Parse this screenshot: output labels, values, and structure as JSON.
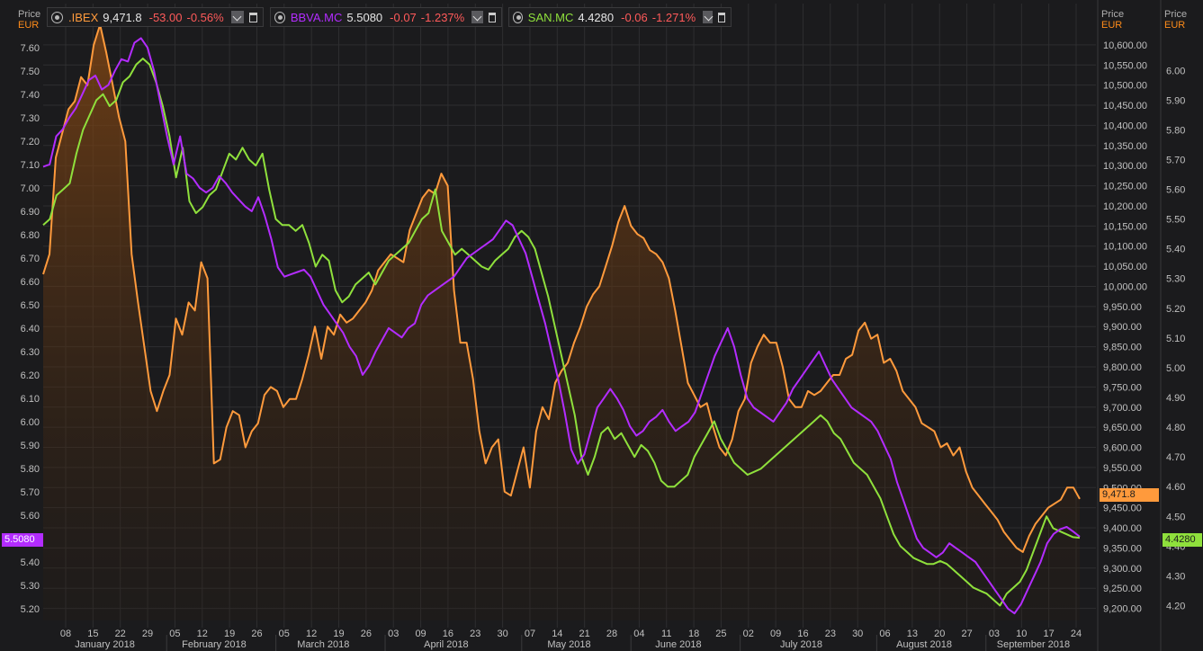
{
  "legend": [
    {
      "symbol": ".IBEX",
      "price": "9,471.8",
      "change": "-53.00",
      "pct": "-0.56%",
      "color": "#ff9a3c"
    },
    {
      "symbol": "BBVA.MC",
      "price": "5.5080",
      "change": "-0.07",
      "pct": "-1.237%",
      "color": "#b32cff"
    },
    {
      "symbol": "SAN.MC",
      "price": "4.4280",
      "change": "-0.06",
      "pct": "-1.271%",
      "color": "#8fe03c"
    }
  ],
  "axis_headers": {
    "price": "Price",
    "currency": "EUR"
  },
  "last_tags": {
    "bbva": {
      "text": "5.5080",
      "color": "#b32cff"
    },
    "ibex": {
      "text": "9,471.8",
      "color": "#ff9a3c"
    },
    "san": {
      "text": "4.4280",
      "color": "#8fe03c"
    }
  },
  "colors": {
    "ibex": "#ff9a3c",
    "bbva": "#b32cff",
    "san": "#8fe03c",
    "background": "#1b1b1d",
    "grid": "#2e2e30"
  },
  "chart_data": {
    "type": "line",
    "x_tick_labels": [
      "08",
      "15",
      "22",
      "29",
      "05",
      "12",
      "19",
      "26",
      "05",
      "12",
      "19",
      "26",
      "03",
      "09",
      "16",
      "23",
      "30",
      "07",
      "14",
      "21",
      "28",
      "04",
      "11",
      "18",
      "25",
      "02",
      "09",
      "16",
      "23",
      "30",
      "06",
      "13",
      "20",
      "27",
      "03",
      "10",
      "17",
      "24"
    ],
    "month_labels": [
      "January 2018",
      "February 2018",
      "March 2018",
      "April 2018",
      "May 2018",
      "June 2018",
      "July 2018",
      "August 2018",
      "September 2018"
    ],
    "axes": {
      "left": {
        "label": "Price",
        "unit": "EUR",
        "series": "BBVA.MC",
        "range": [
          5.15,
          7.68
        ],
        "ticks": [
          "7.60",
          "7.50",
          "7.40",
          "7.30",
          "7.20",
          "7.10",
          "7.00",
          "6.90",
          "6.80",
          "6.70",
          "6.60",
          "6.50",
          "6.40",
          "6.30",
          "6.20",
          "6.10",
          "6.00",
          "5.90",
          "5.80",
          "5.70",
          "5.60",
          "5.50",
          "5.40",
          "5.30",
          "5.20"
        ]
      },
      "right_inner": {
        "label": "Price",
        "unit": "EUR",
        "series": ".IBEX",
        "range": [
          9170,
          10640
        ],
        "ticks": [
          "10,600.00",
          "10,550.00",
          "10,500.00",
          "10,450.00",
          "10,400.00",
          "10,350.00",
          "10,300.00",
          "10,250.00",
          "10,200.00",
          "10,150.00",
          "10,100.00",
          "10,050.00",
          "10,000.00",
          "9,950.00",
          "9,900.00",
          "9,850.00",
          "9,800.00",
          "9,750.00",
          "9,700.00",
          "9,650.00",
          "9,600.00",
          "9,550.00",
          "9,500.00",
          "9,450.00",
          "9,400.00",
          "9,350.00",
          "9,300.00",
          "9,250.00",
          "9,200.00"
        ]
      },
      "right_outer": {
        "label": "Price",
        "unit": "EUR",
        "series": "SAN.MC",
        "range": [
          4.15,
          6.14
        ],
        "ticks": [
          "6.00",
          "5.90",
          "5.80",
          "5.70",
          "5.60",
          "5.50",
          "5.40",
          "5.30",
          "5.20",
          "5.10",
          "5.00",
          "4.90",
          "4.80",
          "4.70",
          "4.60",
          "4.50",
          "4.40",
          "4.30",
          "4.20"
        ]
      }
    },
    "grid": true,
    "series": [
      {
        "name": ".IBEX",
        "axis": "right_inner",
        "values": [
          10030,
          10080,
          10320,
          10380,
          10440,
          10460,
          10520,
          10500,
          10600,
          10650,
          10580,
          10500,
          10420,
          10360,
          10080,
          9960,
          9850,
          9740,
          9690,
          9740,
          9780,
          9920,
          9880,
          9960,
          9940,
          10060,
          10020,
          9560,
          9570,
          9650,
          9690,
          9680,
          9600,
          9640,
          9660,
          9730,
          9750,
          9740,
          9700,
          9720,
          9720,
          9770,
          9830,
          9900,
          9820,
          9900,
          9880,
          9930,
          9910,
          9920,
          9940,
          9960,
          9990,
          10040,
          10060,
          10080,
          10070,
          10060,
          10140,
          10180,
          10220,
          10240,
          10230,
          10280,
          10250,
          9990,
          9860,
          9860,
          9770,
          9640,
          9560,
          9600,
          9620,
          9490,
          9480,
          9540,
          9600,
          9500,
          9640,
          9700,
          9670,
          9760,
          9790,
          9810,
          9860,
          9900,
          9950,
          9980,
          10000,
          10050,
          10100,
          10160,
          10200,
          10150,
          10130,
          10120,
          10090,
          10080,
          10060,
          10020,
          9940,
          9850,
          9760,
          9730,
          9700,
          9710,
          9650,
          9600,
          9580,
          9620,
          9690,
          9720,
          9810,
          9850,
          9880,
          9860,
          9860,
          9800,
          9720,
          9700,
          9700,
          9740,
          9730,
          9740,
          9760,
          9780,
          9780,
          9820,
          9830,
          9890,
          9910,
          9870,
          9880,
          9810,
          9820,
          9790,
          9740,
          9720,
          9700,
          9660,
          9650,
          9640,
          9600,
          9610,
          9580,
          9600,
          9540,
          9500,
          9480,
          9460,
          9440,
          9420,
          9390,
          9370,
          9350,
          9340,
          9380,
          9410,
          9430,
          9450,
          9460,
          9470,
          9500,
          9500,
          9471.8
        ]
      },
      {
        "name": "BBVA.MC",
        "axis": "left",
        "values": [
          7.09,
          7.1,
          7.22,
          7.25,
          7.3,
          7.34,
          7.4,
          7.46,
          7.48,
          7.42,
          7.44,
          7.5,
          7.55,
          7.54,
          7.62,
          7.64,
          7.6,
          7.5,
          7.36,
          7.22,
          7.1,
          7.22,
          7.06,
          7.04,
          7.0,
          6.98,
          7.0,
          7.05,
          7.02,
          6.98,
          6.95,
          6.92,
          6.9,
          6.96,
          6.88,
          6.78,
          6.66,
          6.62,
          6.63,
          6.64,
          6.65,
          6.62,
          6.56,
          6.5,
          6.46,
          6.42,
          6.38,
          6.32,
          6.28,
          6.2,
          6.24,
          6.3,
          6.35,
          6.4,
          6.38,
          6.36,
          6.4,
          6.42,
          6.5,
          6.54,
          6.56,
          6.58,
          6.6,
          6.62,
          6.66,
          6.7,
          6.72,
          6.74,
          6.76,
          6.78,
          6.82,
          6.86,
          6.84,
          6.78,
          6.72,
          6.62,
          6.52,
          6.42,
          6.3,
          6.18,
          6.04,
          5.88,
          5.82,
          5.86,
          5.96,
          6.06,
          6.1,
          6.14,
          6.1,
          6.05,
          5.98,
          5.94,
          5.96,
          6.0,
          6.02,
          6.05,
          6.0,
          5.96,
          5.98,
          6.0,
          6.04,
          6.12,
          6.2,
          6.28,
          6.34,
          6.4,
          6.32,
          6.2,
          6.1,
          6.06,
          6.04,
          6.02,
          6.0,
          6.04,
          6.08,
          6.14,
          6.18,
          6.22,
          6.26,
          6.3,
          6.24,
          6.18,
          6.14,
          6.1,
          6.06,
          6.04,
          6.02,
          6.0,
          5.96,
          5.9,
          5.84,
          5.74,
          5.66,
          5.58,
          5.5,
          5.46,
          5.44,
          5.42,
          5.44,
          5.48,
          5.46,
          5.44,
          5.42,
          5.4,
          5.36,
          5.32,
          5.28,
          5.24,
          5.2,
          5.18,
          5.22,
          5.28,
          5.34,
          5.4,
          5.48,
          5.52,
          5.54,
          5.55,
          5.53,
          5.508
        ]
      },
      {
        "name": "SAN.MC",
        "axis": "right_outer",
        "values": [
          5.48,
          5.5,
          5.58,
          5.6,
          5.62,
          5.72,
          5.8,
          5.85,
          5.9,
          5.92,
          5.88,
          5.9,
          5.96,
          5.98,
          6.02,
          6.04,
          6.02,
          5.96,
          5.88,
          5.78,
          5.64,
          5.74,
          5.56,
          5.52,
          5.54,
          5.58,
          5.6,
          5.66,
          5.72,
          5.7,
          5.74,
          5.7,
          5.68,
          5.72,
          5.6,
          5.5,
          5.48,
          5.48,
          5.46,
          5.48,
          5.42,
          5.34,
          5.38,
          5.36,
          5.26,
          5.22,
          5.24,
          5.28,
          5.3,
          5.32,
          5.28,
          5.32,
          5.36,
          5.38,
          5.4,
          5.42,
          5.46,
          5.5,
          5.52,
          5.6,
          5.46,
          5.42,
          5.38,
          5.4,
          5.38,
          5.36,
          5.34,
          5.33,
          5.36,
          5.38,
          5.4,
          5.44,
          5.46,
          5.44,
          5.4,
          5.32,
          5.24,
          5.14,
          5.04,
          4.94,
          4.84,
          4.7,
          4.64,
          4.7,
          4.78,
          4.8,
          4.76,
          4.78,
          4.74,
          4.7,
          4.74,
          4.72,
          4.68,
          4.62,
          4.6,
          4.6,
          4.62,
          4.64,
          4.7,
          4.74,
          4.78,
          4.82,
          4.76,
          4.72,
          4.68,
          4.66,
          4.64,
          4.65,
          4.66,
          4.68,
          4.7,
          4.72,
          4.74,
          4.76,
          4.78,
          4.8,
          4.82,
          4.84,
          4.82,
          4.78,
          4.76,
          4.72,
          4.68,
          4.66,
          4.64,
          4.6,
          4.56,
          4.5,
          4.44,
          4.4,
          4.38,
          4.36,
          4.35,
          4.34,
          4.34,
          4.35,
          4.34,
          4.32,
          4.3,
          4.28,
          4.26,
          4.25,
          4.24,
          4.22,
          4.2,
          4.24,
          4.26,
          4.28,
          4.32,
          4.38,
          4.44,
          4.5,
          4.46,
          4.45,
          4.44,
          4.43,
          4.428
        ]
      }
    ]
  }
}
